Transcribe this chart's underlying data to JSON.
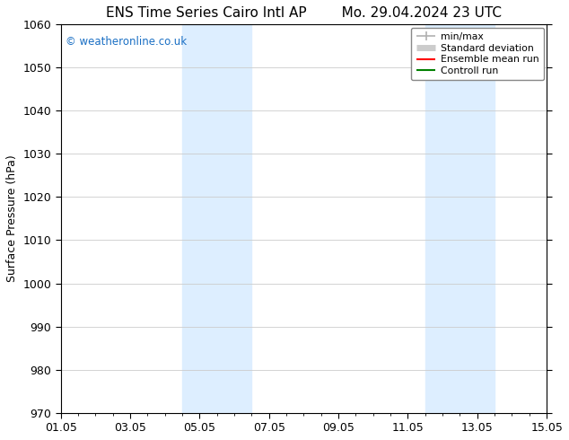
{
  "title_left": "ENS Time Series Cairo Intl AP",
  "title_right": "Mo. 29.04.2024 23 UTC",
  "ylabel": "Surface Pressure (hPa)",
  "ylim": [
    970,
    1060
  ],
  "yticks": [
    970,
    980,
    990,
    1000,
    1010,
    1020,
    1030,
    1040,
    1050,
    1060
  ],
  "xlim": [
    0,
    14
  ],
  "xtick_labels": [
    "01.05",
    "03.05",
    "05.05",
    "07.05",
    "09.05",
    "11.05",
    "13.05",
    "15.05"
  ],
  "xtick_positions": [
    0,
    2,
    4,
    6,
    8,
    10,
    12,
    14
  ],
  "shaded_bands": [
    {
      "x_start": 3.5,
      "x_end": 5.5
    },
    {
      "x_start": 10.5,
      "x_end": 12.5
    }
  ],
  "shaded_color": "#ddeeff",
  "watermark_text": "© weatheronline.co.uk",
  "watermark_color": "#1a6fc4",
  "legend_items": [
    {
      "label": "min/max",
      "color": "#b0b0b0",
      "lw": 1.2
    },
    {
      "label": "Standard deviation",
      "color": "#cccccc",
      "lw": 5
    },
    {
      "label": "Ensemble mean run",
      "color": "red",
      "lw": 1.5
    },
    {
      "label": "Controll run",
      "color": "green",
      "lw": 1.5
    }
  ],
  "bg_color": "#ffffff",
  "grid_color": "#cccccc",
  "title_fontsize": 11,
  "axis_fontsize": 9,
  "tick_fontsize": 9
}
